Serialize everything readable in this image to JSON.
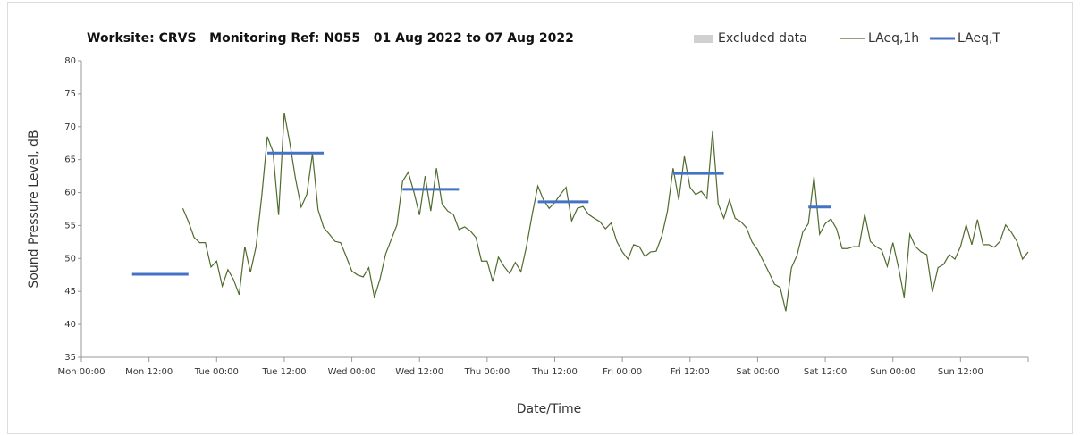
{
  "chart_data": {
    "type": "line",
    "title": "Worksite: CRVS   Monitoring Ref: N055   01 Aug 2022 to 07 Aug 2022",
    "xlabel": "Date/Time",
    "ylabel": "Sound Pressure Level, dB",
    "xlim": [
      0,
      168
    ],
    "ylim": [
      35,
      80
    ],
    "yticks": [
      35,
      40,
      45,
      50,
      55,
      60,
      65,
      70,
      75,
      80
    ],
    "xticks": [
      {
        "value": 0,
        "label": "Mon 00:00"
      },
      {
        "value": 12,
        "label": "Mon 12:00"
      },
      {
        "value": 24,
        "label": "Tue 00:00"
      },
      {
        "value": 36,
        "label": "Tue 12:00"
      },
      {
        "value": 48,
        "label": "Wed 00:00"
      },
      {
        "value": 60,
        "label": "Wed 12:00"
      },
      {
        "value": 72,
        "label": "Thu 00:00"
      },
      {
        "value": 84,
        "label": "Thu 12:00"
      },
      {
        "value": 96,
        "label": "Fri 00:00"
      },
      {
        "value": 108,
        "label": "Fri 12:00"
      },
      {
        "value": 120,
        "label": "Sat 00:00"
      },
      {
        "value": 132,
        "label": "Sat 12:00"
      },
      {
        "value": 144,
        "label": "Sun 00:00"
      },
      {
        "value": 156,
        "label": "Sun 12:00"
      }
    ],
    "series": [
      {
        "name": "Excluded data",
        "color": "#d0d0d0",
        "style": "area",
        "values": []
      },
      {
        "name": "LAeq,1h",
        "color": "#4f6b2d",
        "style": "line",
        "x": [
          18,
          19,
          20,
          21,
          22,
          23,
          24,
          25,
          26,
          27,
          28,
          29,
          30,
          31,
          32,
          33,
          34,
          35,
          36,
          37,
          38,
          39,
          40,
          41,
          42,
          43,
          44,
          45,
          46,
          47,
          48,
          49,
          50,
          51,
          52,
          53,
          54,
          55,
          56,
          57,
          58,
          59,
          60,
          61,
          62,
          63,
          64,
          65,
          66,
          67,
          68,
          69,
          70,
          71,
          72,
          73,
          74,
          75,
          76,
          77,
          78,
          79,
          80,
          81,
          82,
          83,
          84,
          85,
          86,
          87,
          88,
          89,
          90,
          91,
          92,
          93,
          94,
          95,
          96,
          97,
          98,
          99,
          100,
          101,
          102,
          103,
          104,
          105,
          106,
          107,
          108,
          109,
          110,
          111,
          112,
          113,
          114,
          115,
          116,
          117,
          118,
          119,
          120,
          121,
          122,
          123,
          124,
          125,
          126,
          127,
          128,
          129,
          130,
          131,
          132,
          133,
          134,
          135,
          136,
          137,
          138,
          139,
          140,
          141,
          142,
          143,
          144,
          145,
          146,
          147,
          148,
          149,
          150,
          151,
          152,
          153,
          154,
          155,
          156,
          157,
          158,
          159,
          160,
          161,
          162,
          163,
          164,
          165,
          166,
          167,
          168
        ],
        "values": [
          57.6,
          55.6,
          53.2,
          52.4,
          52.4,
          48.7,
          49.6,
          45.8,
          48.3,
          46.8,
          44.5,
          51.8,
          47.9,
          51.8,
          59.4,
          68.5,
          66.2,
          56.6,
          72.1,
          67.5,
          62.1,
          57.8,
          59.7,
          65.9,
          57.4,
          54.7,
          53.7,
          52.6,
          52.4,
          50.3,
          48.1,
          47.5,
          47.2,
          48.6,
          44.1,
          46.9,
          50.7,
          52.9,
          55.1,
          61.7,
          63.1,
          60.1,
          56.6,
          62.5,
          57.2,
          63.7,
          58.3,
          57.2,
          56.7,
          54.4,
          54.8,
          54.2,
          53.2,
          49.6,
          49.6,
          46.5,
          50.2,
          48.8,
          47.7,
          49.4,
          48.0,
          51.9,
          56.7,
          61.0,
          58.9,
          57.6,
          58.5,
          59.7,
          60.8,
          55.7,
          57.6,
          57.9,
          56.7,
          56.1,
          55.6,
          54.5,
          55.4,
          52.6,
          51.0,
          49.9,
          52.1,
          51.8,
          50.3,
          51.0,
          51.1,
          53.4,
          57.2,
          63.7,
          58.9,
          65.5,
          60.8,
          59.7,
          60.2,
          59.1,
          69.3,
          58.3,
          56.1,
          58.9,
          56.1,
          55.6,
          54.7,
          52.5,
          51.3,
          49.6,
          47.9,
          46.1,
          45.6,
          42.0,
          48.6,
          50.5,
          54.0,
          55.3,
          62.4,
          53.7,
          55.3,
          56.0,
          54.5,
          51.5,
          51.5,
          51.8,
          51.8,
          56.7,
          52.6,
          51.8,
          51.3,
          48.8,
          52.4,
          48.6,
          44.1,
          53.7,
          51.8,
          51.0,
          50.6,
          44.9,
          48.6,
          49.1,
          50.6,
          49.9,
          51.8,
          55.1,
          52.1,
          55.9,
          52.1,
          52.1,
          51.7,
          52.6,
          55.1,
          54.0,
          52.6,
          49.9,
          51.0
        ]
      },
      {
        "name": "LAeq,T",
        "color": "#4472c4",
        "style": "segment",
        "starts": [
          9,
          33,
          57,
          81,
          105,
          129
        ],
        "ends": [
          19,
          43,
          67,
          90,
          114,
          133
        ],
        "values": [
          47.6,
          66.0,
          60.5,
          58.6,
          62.9,
          57.8
        ]
      }
    ]
  }
}
